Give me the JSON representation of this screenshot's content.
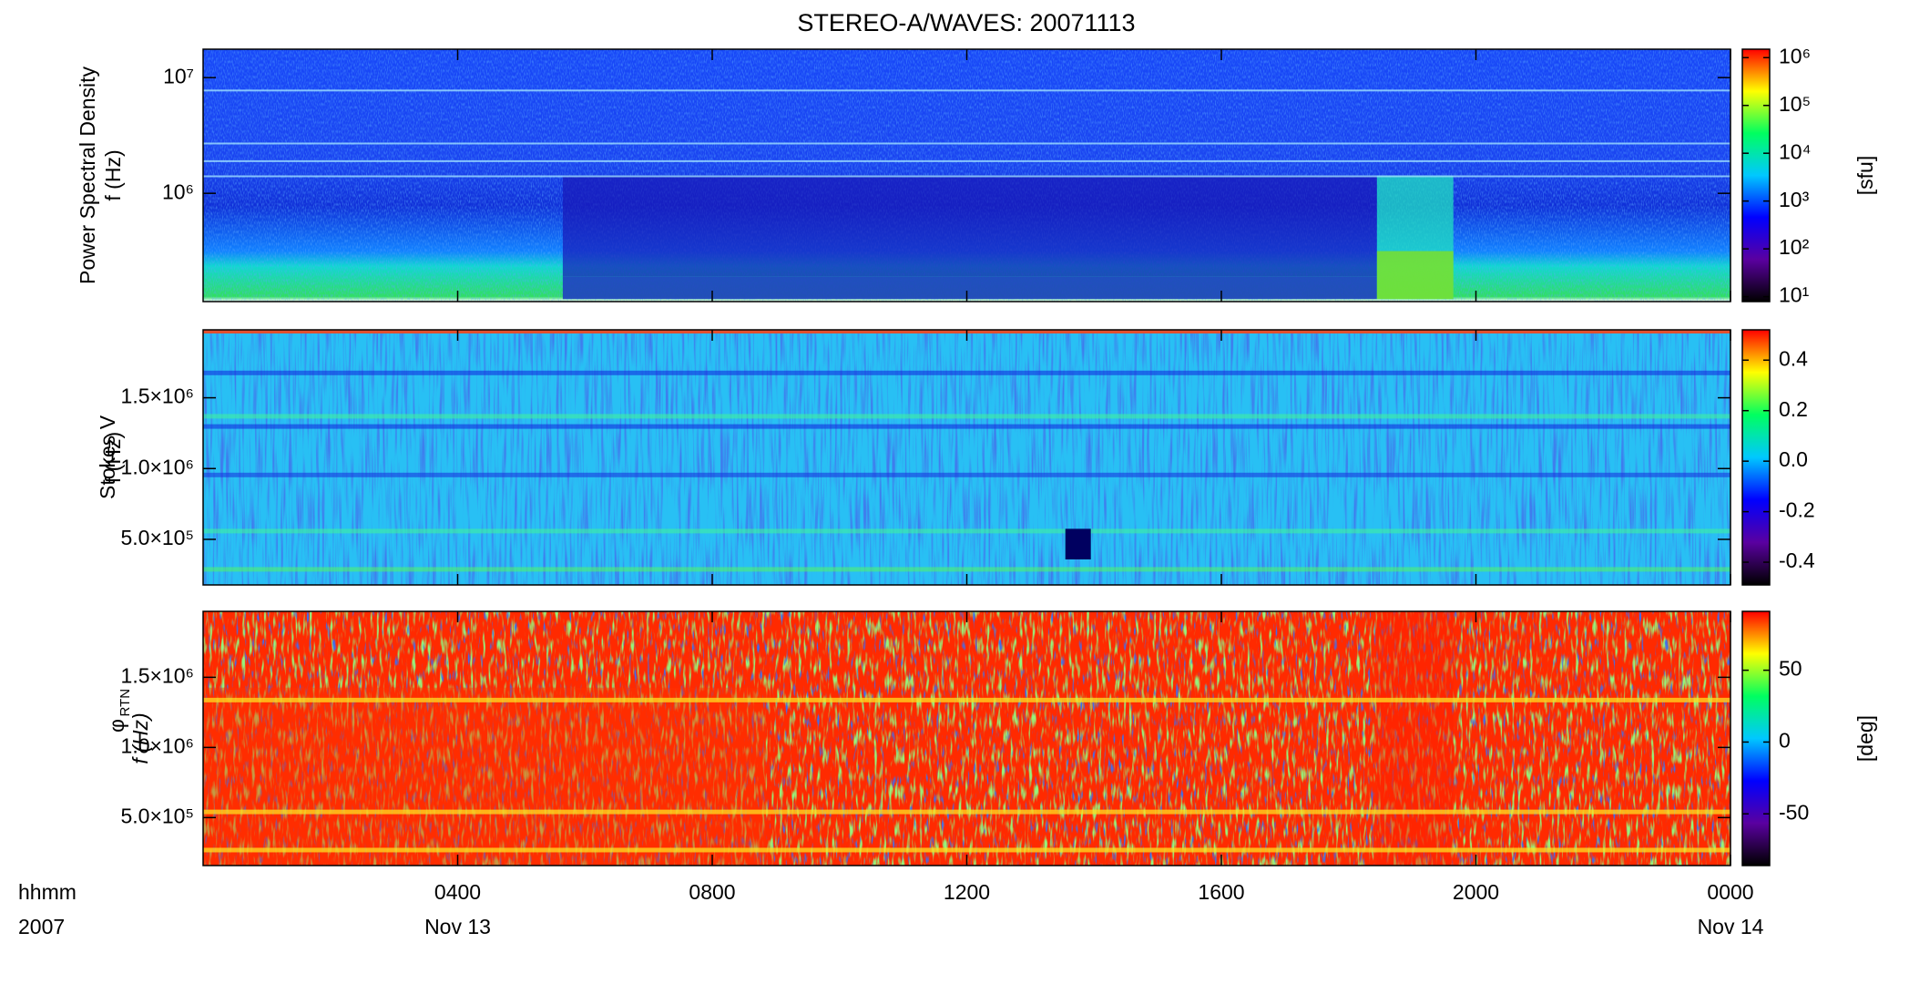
{
  "chart_data": [
    {
      "type": "spectrogram",
      "title": "STEREO-A/WAVES: 20071113",
      "ylabel": [
        "Power Spectral Density",
        "f (Hz)"
      ],
      "ylog": true,
      "ylim": [
        116000,
        17600000
      ],
      "yticks": [
        {
          "value": 1000000,
          "label": "10⁶"
        },
        {
          "value": 10000000,
          "label": "10⁷"
        }
      ],
      "colorbar": {
        "log": true,
        "lim": [
          7.9,
          1500000
        ],
        "label": "[sfu]",
        "ticks": [
          {
            "value": 10,
            "label": "10¹"
          },
          {
            "value": 100,
            "label": "10²"
          },
          {
            "value": 1000,
            "label": "10³"
          },
          {
            "value": 10000,
            "label": "10⁴"
          },
          {
            "value": 100000,
            "label": "10⁵"
          },
          {
            "value": 1000000,
            "label": "10⁶"
          }
        ],
        "colormap": [
          "#000000",
          "#5a00a0",
          "#0000ff",
          "#00c8ff",
          "#00ff60",
          "#ffff00",
          "#ff0000"
        ]
      }
    },
    {
      "type": "spectrogram",
      "ylabel": [
        "Stokes V",
        "f (Hz)"
      ],
      "ylim": [
        178000,
        1980000
      ],
      "yticks": [
        {
          "value": 500000,
          "label": "5.0×10⁵"
        },
        {
          "value": 1000000,
          "label": "1.0×10⁶"
        },
        {
          "value": 1500000,
          "label": "1.5×10⁶"
        }
      ],
      "colorbar": {
        "lim": [
          -0.49,
          0.52
        ],
        "ticks": [
          -0.4,
          -0.2,
          {
            "value": 0,
            "label": "0.0"
          },
          0.2,
          0.4
        ],
        "colormap": [
          "#000000",
          "#5a00a0",
          "#0000ff",
          "#00c8ff",
          "#00ff60",
          "#ffff00",
          "#ff0000"
        ]
      }
    },
    {
      "type": "spectrogram",
      "ylabel": [
        "φ",
        "RTN",
        "f (Hz)"
      ],
      "ylabel_style": "subscript",
      "ylim": [
        158000,
        1970000
      ],
      "yticks": [
        {
          "value": 500000,
          "label": "5.0×10⁵"
        },
        {
          "value": 1000000,
          "label": "1.0×10⁶"
        },
        {
          "value": 1500000,
          "label": "1.5×10⁶"
        }
      ],
      "xlim": [
        0,
        24
      ],
      "xticks": [
        {
          "value": 4,
          "label": "0400"
        },
        {
          "value": 8,
          "label": "0800"
        },
        {
          "value": 12,
          "label": "1200"
        },
        {
          "value": 16,
          "label": "1600"
        },
        {
          "value": 20,
          "label": "2000"
        },
        {
          "value": 24,
          "label": "0000"
        }
      ],
      "x_label_lines": [
        "hhmm",
        "2007"
      ],
      "date_labels": [
        {
          "value": 4,
          "label": "Nov 13"
        },
        {
          "value": 24,
          "label": "Nov 14"
        }
      ],
      "colorbar": {
        "lim": [
          -86,
          91
        ],
        "label": "[deg]",
        "ticks": [
          -50,
          0,
          50
        ],
        "colormap": [
          "#000000",
          "#5a00a0",
          "#0000ff",
          "#00c8ff",
          "#00ff60",
          "#ffff00",
          "#ff0000"
        ]
      }
    }
  ]
}
